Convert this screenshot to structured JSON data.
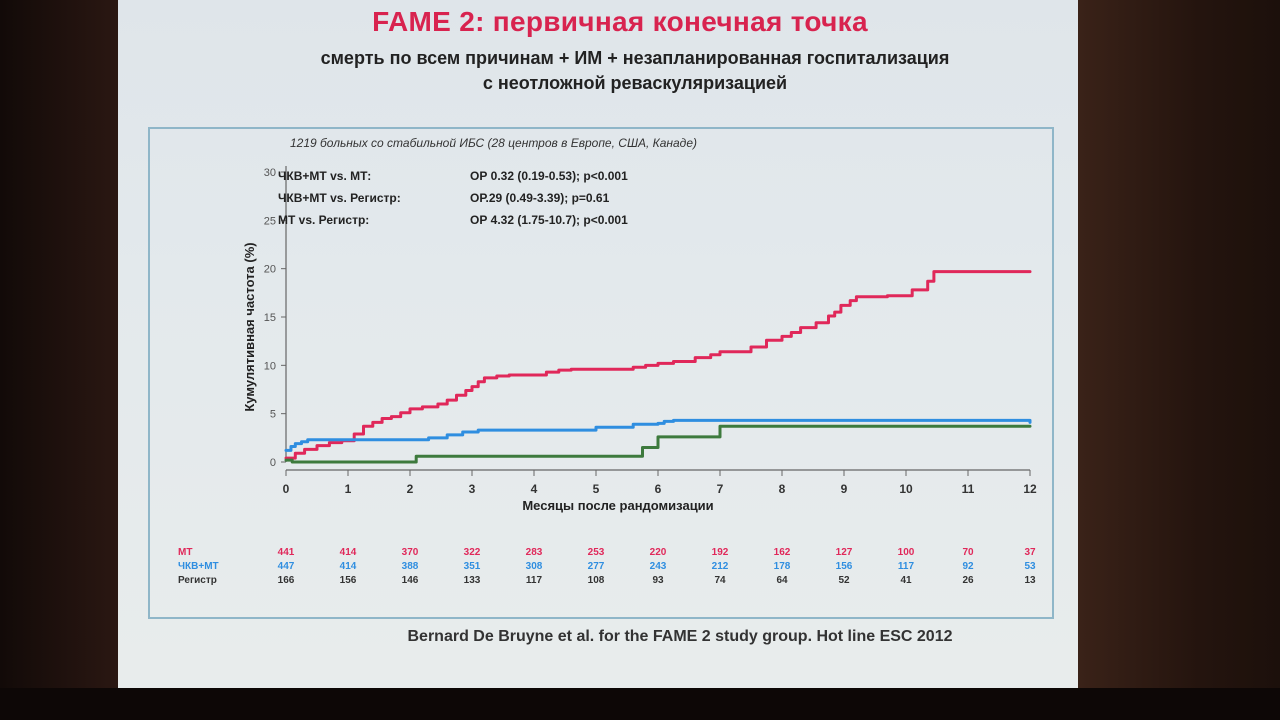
{
  "slide": {
    "title": "FAME 2: первичная конечная точка",
    "subtitle_line1": "смерть по всем причинам + ИМ + незапланированная госпитализация",
    "subtitle_line2": "с неотложной реваскуляризацией",
    "footer": "Bernard De Bruyne et al. for the FAME 2 study group. Hot line ESC 2012"
  },
  "chart_data": {
    "type": "line",
    "note": "1219 больных со стабильной ИБС (28 центров в Европе, США, Канаде)",
    "xlabel": "Месяцы после рандомизации",
    "ylabel": "Кумулятивная частота (%)",
    "xlim": [
      0,
      12
    ],
    "ylim": [
      0,
      30
    ],
    "x_ticks": [
      "0",
      "1",
      "2",
      "3",
      "4",
      "5",
      "6",
      "7",
      "8",
      "9",
      "10",
      "11",
      "12"
    ],
    "y_ticks": [
      "0",
      "5",
      "10",
      "15",
      "20",
      "25",
      "30"
    ],
    "grid": false,
    "stats": [
      {
        "label": "ЧКВ+МТ vs. МТ:",
        "value": "ОР 0.32 (0.19-0.53); p<0.001"
      },
      {
        "label": "ЧКВ+МТ vs. Регистр:",
        "value": "ОР.29 (0.49-3.39); p=0.61"
      },
      {
        "label": "МТ vs. Регистр:",
        "value": "ОР 4.32 (1.75-10.7); p<0.001"
      }
    ],
    "series": [
      {
        "name": "МТ",
        "color": "#e0285a",
        "step": true,
        "x": [
          0,
          0.15,
          0.3,
          0.5,
          0.7,
          0.9,
          1.1,
          1.25,
          1.4,
          1.55,
          1.7,
          1.85,
          2.0,
          2.2,
          2.45,
          2.6,
          2.75,
          2.9,
          3.0,
          3.1,
          3.2,
          3.4,
          3.6,
          4.2,
          4.4,
          4.6,
          5.6,
          5.8,
          6.0,
          6.25,
          6.6,
          6.85,
          7.0,
          7.5,
          7.75,
          8.0,
          8.15,
          8.3,
          8.55,
          8.75,
          8.85,
          8.95,
          9.1,
          9.2,
          9.7,
          10.1,
          10.35,
          10.45,
          12.0
        ],
        "y": [
          0.4,
          0.9,
          1.3,
          1.7,
          2.0,
          2.2,
          2.9,
          3.7,
          4.1,
          4.5,
          4.7,
          5.1,
          5.5,
          5.7,
          6.0,
          6.4,
          6.9,
          7.4,
          7.8,
          8.3,
          8.7,
          8.9,
          9.0,
          9.3,
          9.5,
          9.6,
          9.8,
          10.0,
          10.2,
          10.4,
          10.8,
          11.1,
          11.4,
          11.9,
          12.6,
          13.0,
          13.4,
          13.9,
          14.4,
          15.1,
          15.5,
          16.2,
          16.7,
          17.1,
          17.2,
          17.8,
          18.7,
          19.7,
          19.7
        ]
      },
      {
        "name": "ЧКВ+МТ",
        "color": "#2f8ee0",
        "step": true,
        "x": [
          0,
          0.08,
          0.15,
          0.25,
          0.35,
          1.5,
          2.3,
          2.6,
          2.85,
          3.1,
          5.0,
          5.6,
          6.0,
          6.1,
          6.25,
          12.0
        ],
        "y": [
          1.2,
          1.6,
          1.9,
          2.1,
          2.3,
          2.3,
          2.5,
          2.8,
          3.1,
          3.3,
          3.6,
          3.9,
          4.0,
          4.2,
          4.3,
          4.1
        ]
      },
      {
        "name": "Регистр",
        "color": "#3d7a3d",
        "step": true,
        "x": [
          0,
          0.1,
          2.0,
          2.1,
          5.5,
          5.75,
          6.0,
          7.0,
          12.0
        ],
        "y": [
          0.2,
          0.0,
          0.0,
          0.6,
          0.6,
          1.5,
          2.6,
          3.7,
          3.7
        ]
      }
    ],
    "at_risk": [
      {
        "name": "МТ",
        "color": "#e0285a",
        "values": [
          "441",
          "414",
          "370",
          "322",
          "283",
          "253",
          "220",
          "192",
          "162",
          "127",
          "100",
          "70",
          "37"
        ]
      },
      {
        "name": "ЧКВ+МТ",
        "color": "#2f8ee0",
        "values": [
          "447",
          "414",
          "388",
          "351",
          "308",
          "277",
          "243",
          "212",
          "178",
          "156",
          "117",
          "92",
          "53"
        ]
      },
      {
        "name": "Регистр",
        "color": "#3d7a3d",
        "label_color": "#333",
        "values": [
          "166",
          "156",
          "146",
          "133",
          "117",
          "108",
          "93",
          "74",
          "64",
          "52",
          "41",
          "26",
          "13"
        ]
      }
    ]
  }
}
